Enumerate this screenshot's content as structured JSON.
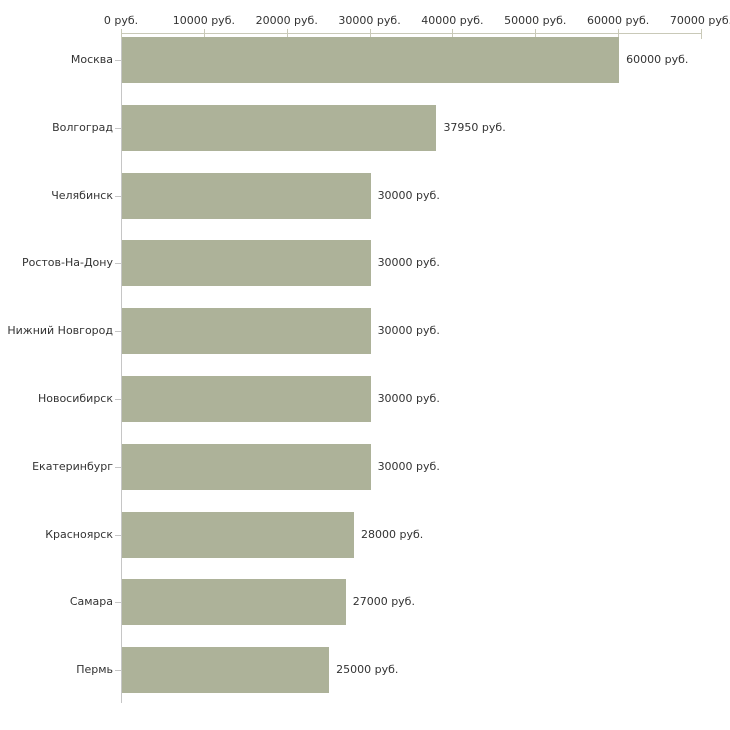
{
  "chart_data": {
    "type": "bar",
    "orientation": "horizontal",
    "title": "",
    "xlabel": "",
    "ylabel": "",
    "categories": [
      "Москва",
      "Волгоград",
      "Челябинск",
      "Ростов-На-Дону",
      "Нижний Новгород",
      "Новосибирск",
      "Екатеринбург",
      "Красноярск",
      "Самара",
      "Пермь"
    ],
    "values": [
      60000,
      37950,
      30000,
      30000,
      30000,
      30000,
      30000,
      28000,
      27000,
      25000
    ],
    "value_labels": [
      "60000 руб.",
      "37950 руб.",
      "30000 руб.",
      "30000 руб.",
      "30000 руб.",
      "30000 руб.",
      "30000 руб.",
      "28000 руб.",
      "27000 руб.",
      "25000 руб."
    ],
    "x_tick_values": [
      0,
      10000,
      20000,
      30000,
      40000,
      50000,
      60000,
      70000
    ],
    "x_tick_labels": [
      "0 руб.",
      "10000 руб.",
      "20000 руб.",
      "30000 руб.",
      "40000 руб.",
      "50000 руб.",
      "60000 руб.",
      "70000 руб."
    ],
    "xlim": [
      0,
      70000
    ],
    "grid": false,
    "legend": false,
    "colors": {
      "bar": "#adb299",
      "axis_x": "#c9c9b8",
      "axis_y": "#c6c6c6",
      "text": "#333333",
      "background": "#ffffff"
    }
  }
}
